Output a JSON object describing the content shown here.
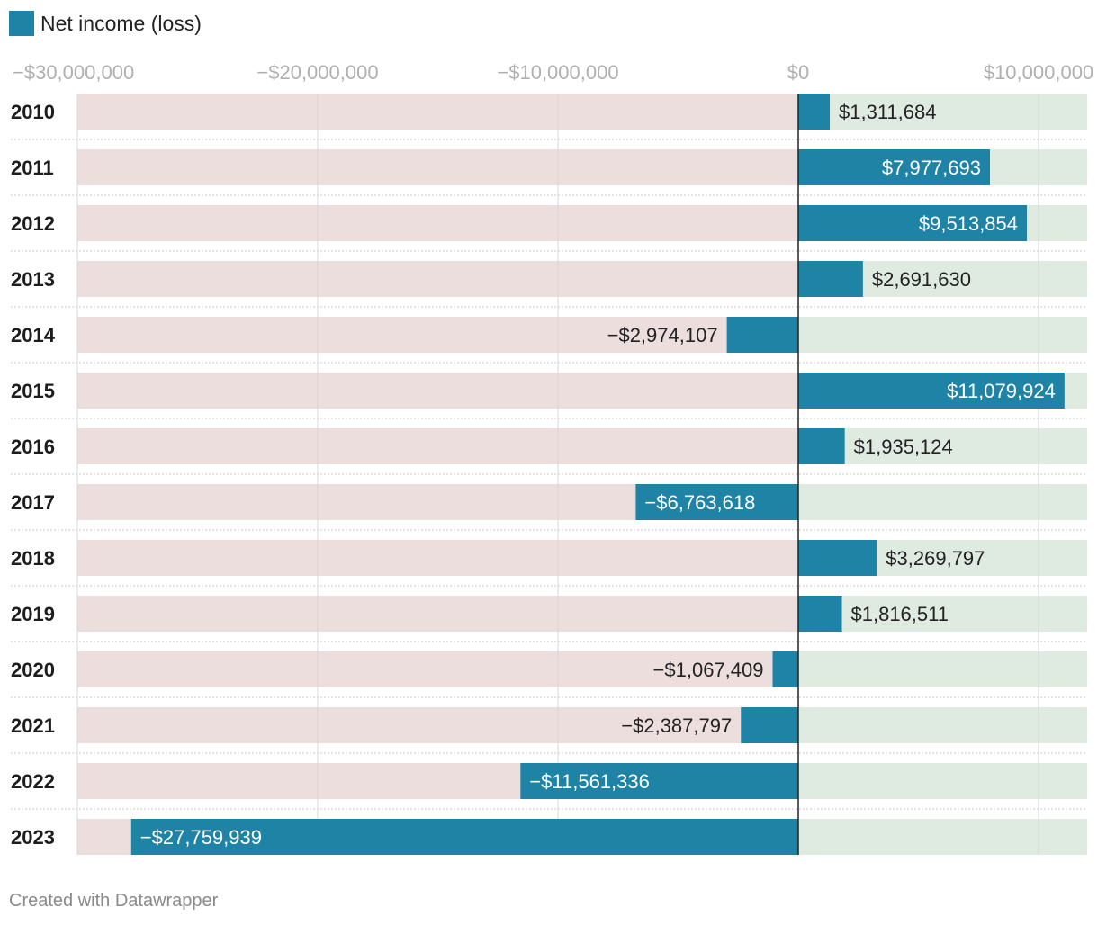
{
  "legend": {
    "label": "Net income (loss)",
    "color": "#1f83a6"
  },
  "footer": "Created with Datawrapper",
  "colors": {
    "bar": "#1f83a6",
    "negative_background": "#ecdedd",
    "positive_background": "#dfeae0",
    "grid": "#d7d7d7",
    "zero_line": "#222222",
    "tick_text": "#b0b0b0",
    "label_dark": "#222222",
    "label_light": "#ffffff"
  },
  "chart_data": {
    "type": "bar",
    "orientation": "horizontal",
    "title": "",
    "xlabel": "",
    "ylabel": "",
    "xlim": [
      -30000000,
      12000000
    ],
    "grid": true,
    "legend_position": "top-left",
    "ticks": [
      {
        "value": -30000000,
        "label": "−$30,000,000"
      },
      {
        "value": -20000000,
        "label": "−$20,000,000"
      },
      {
        "value": -10000000,
        "label": "−$10,000,000"
      },
      {
        "value": 0,
        "label": "$0"
      },
      {
        "value": 10000000,
        "label": "$10,000,000"
      }
    ],
    "series": [
      {
        "name": "Net income (loss)",
        "categories": [
          "2010",
          "2011",
          "2012",
          "2013",
          "2014",
          "2015",
          "2016",
          "2017",
          "2018",
          "2019",
          "2020",
          "2021",
          "2022",
          "2023"
        ],
        "values": [
          1311684,
          7977693,
          9513854,
          2691630,
          -2974107,
          11079924,
          1935124,
          -6763618,
          3269797,
          1816511,
          -1067409,
          -2387797,
          -11561336,
          -27759939
        ],
        "labels": [
          "$1,311,684",
          "$7,977,693",
          "$9,513,854",
          "$2,691,630",
          "−$2,974,107",
          "$11,079,924",
          "$1,935,124",
          "−$6,763,618",
          "$3,269,797",
          "$1,816,511",
          "−$1,067,409",
          "−$2,387,797",
          "−$11,561,336",
          "−$27,759,939"
        ]
      }
    ]
  }
}
